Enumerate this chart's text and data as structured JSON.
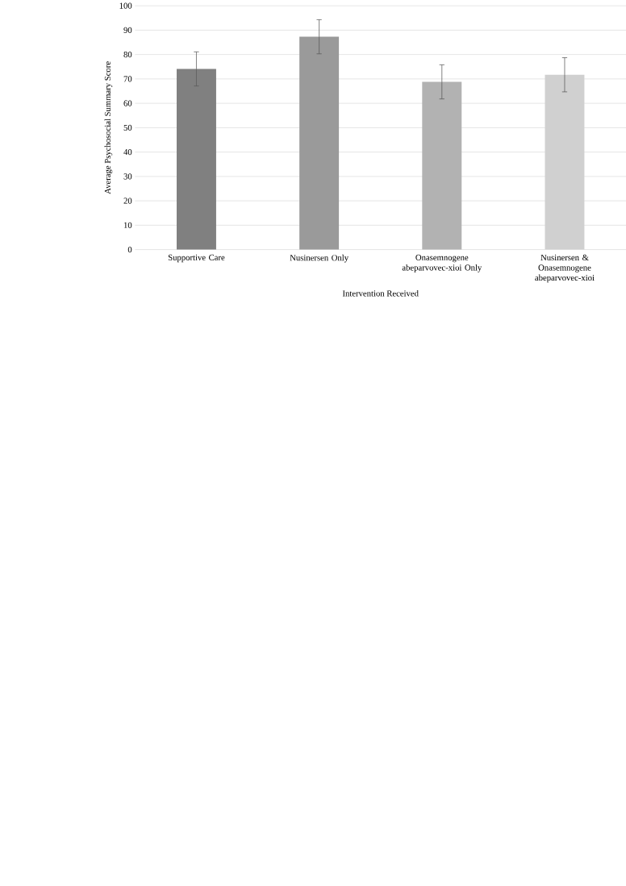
{
  "chart_data": {
    "type": "bar",
    "xlabel": "Intervention Received",
    "ylabel": "Average Psychosocial Summary Score",
    "categories": [
      "Supportive Care",
      "Nusinersen Only",
      "Onasemnogene abeparvovec-xioi Only",
      "Nusinersen & Onasemnogene abeparvovec-xioi"
    ],
    "values": [
      74.1,
      87.3,
      68.8,
      71.7
    ],
    "colors": [
      "#808080",
      "#9a9a9a",
      "#b2b2b2",
      "#d0d0d0"
    ],
    "errors": [
      7,
      7,
      7,
      7
    ],
    "ylim": [
      0,
      100
    ],
    "yticks": [
      0,
      10,
      20,
      30,
      40,
      50,
      60,
      70,
      80,
      90,
      100
    ],
    "grid": "y"
  }
}
